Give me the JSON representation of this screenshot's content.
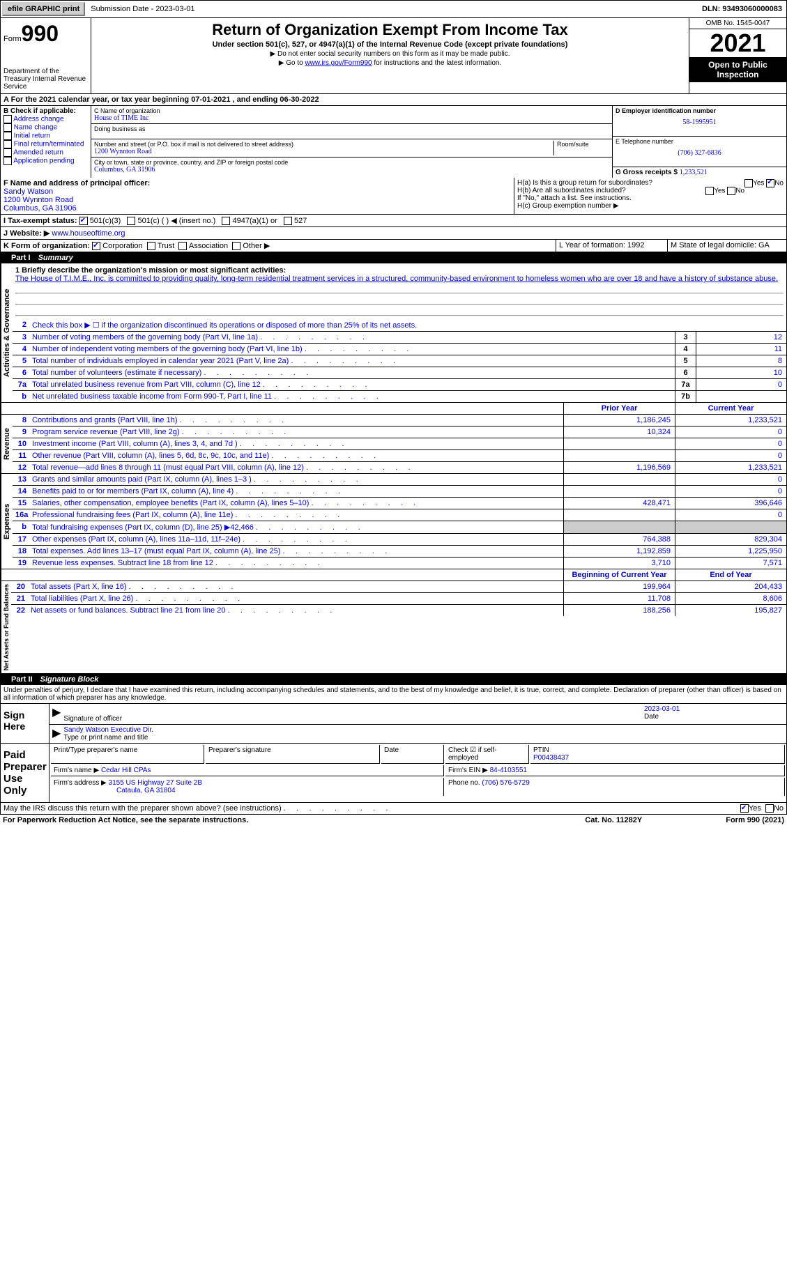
{
  "top": {
    "efile_btn": "efile GRAPHIC print",
    "submission": "Submission Date - 2023-03-01",
    "dln": "DLN: 93493060000083"
  },
  "header": {
    "form_label": "Form",
    "form_num": "990",
    "dept": "Department of the Treasury Internal Revenue Service",
    "title": "Return of Organization Exempt From Income Tax",
    "subtitle": "Under section 501(c), 527, or 4947(a)(1) of the Internal Revenue Code (except private foundations)",
    "note1": "▶ Do not enter social security numbers on this form as it may be made public.",
    "note2_pre": "▶ Go to ",
    "note2_link": "www.irs.gov/Form990",
    "note2_post": " for instructions and the latest information.",
    "omb": "OMB No. 1545-0047",
    "year": "2021",
    "open": "Open to Public Inspection"
  },
  "row_a": "A For the 2021 calendar year, or tax year beginning 07-01-2021    , and ending 06-30-2022",
  "section_b": {
    "hdr": "B Check if applicable:",
    "opts": [
      "Address change",
      "Name change",
      "Initial return",
      "Final return/terminated",
      "Amended return",
      "Application pending"
    ]
  },
  "section_c": {
    "name_lbl": "C Name of organization",
    "name": "House of TIME Inc",
    "dba_lbl": "Doing business as",
    "addr_lbl": "Number and street (or P.O. box if mail is not delivered to street address)",
    "room_lbl": "Room/suite",
    "addr": "1200 Wynnton Road",
    "city_lbl": "City or town, state or province, country, and ZIP or foreign postal code",
    "city": "Columbus, GA  31906"
  },
  "section_d": {
    "ein_lbl": "D Employer identification number",
    "ein": "58-1995951",
    "phone_lbl": "E Telephone number",
    "phone": "(706) 327-6836",
    "gross_lbl": "G Gross receipts $",
    "gross": "1,233,521"
  },
  "section_f": {
    "lbl": "F Name and address of principal officer:",
    "name": "Sandy Watson",
    "addr1": "1200 Wynnton Road",
    "addr2": "Columbus, GA  31906"
  },
  "section_h": {
    "ha": "H(a)  Is this a group return for subordinates?",
    "hb": "H(b)  Are all subordinates included?",
    "hb_note": "If \"No,\" attach a list. See instructions.",
    "hc": "H(c)  Group exemption number ▶"
  },
  "row_i": "I   Tax-exempt status:",
  "i_opts": [
    "501(c)(3)",
    "501(c) (  ) ◀ (insert no.)",
    "4947(a)(1) or",
    "527"
  ],
  "row_j_lbl": "J  Website: ▶",
  "row_j_val": "www.houseoftime.org",
  "row_k": "K Form of organization:",
  "k_opts": [
    "Corporation",
    "Trust",
    "Association",
    "Other ▶"
  ],
  "row_l": "L Year of formation: 1992",
  "row_m": "M State of legal domicile: GA",
  "part1_hdr": "Part I      Summary",
  "mission_lbl": "1  Briefly describe the organization's mission or most significant activities:",
  "mission": "The House of T.I.M.E., Inc. is committed to providing quality, long-term residential treatment services in a structured, community-based environment to homeless women who are over 18 and have a history of substance abuse.",
  "line2": "Check this box ▶ ☐  if the organization discontinued its operations or disposed of more than 25% of its net assets.",
  "summary": {
    "governance_label": "Activities & Governance",
    "lines_top": [
      {
        "n": "3",
        "t": "Number of voting members of the governing body (Part VI, line 1a)",
        "box": "3",
        "v": "12"
      },
      {
        "n": "4",
        "t": "Number of independent voting members of the governing body (Part VI, line 1b)",
        "box": "4",
        "v": "11"
      },
      {
        "n": "5",
        "t": "Total number of individuals employed in calendar year 2021 (Part V, line 2a)",
        "box": "5",
        "v": "8"
      },
      {
        "n": "6",
        "t": "Total number of volunteers (estimate if necessary)",
        "box": "6",
        "v": "10"
      },
      {
        "n": "7a",
        "t": "Total unrelated business revenue from Part VIII, column (C), line 12",
        "box": "7a",
        "v": "0"
      },
      {
        "n": "b",
        "t": "Net unrelated business taxable income from Form 990-T, Part I, line 11",
        "box": "7b",
        "v": ""
      }
    ],
    "col_hdrs": {
      "prior": "Prior Year",
      "current": "Current Year"
    },
    "revenue_label": "Revenue",
    "revenue": [
      {
        "n": "8",
        "t": "Contributions and grants (Part VIII, line 1h)",
        "p": "1,186,245",
        "c": "1,233,521"
      },
      {
        "n": "9",
        "t": "Program service revenue (Part VIII, line 2g)",
        "p": "10,324",
        "c": "0"
      },
      {
        "n": "10",
        "t": "Investment income (Part VIII, column (A), lines 3, 4, and 7d )",
        "p": "",
        "c": "0"
      },
      {
        "n": "11",
        "t": "Other revenue (Part VIII, column (A), lines 5, 6d, 8c, 9c, 10c, and 11e)",
        "p": "",
        "c": "0"
      },
      {
        "n": "12",
        "t": "Total revenue—add lines 8 through 11 (must equal Part VIII, column (A), line 12)",
        "p": "1,196,569",
        "c": "1,233,521"
      }
    ],
    "expenses_label": "Expenses",
    "expenses": [
      {
        "n": "13",
        "t": "Grants and similar amounts paid (Part IX, column (A), lines 1–3 )",
        "p": "",
        "c": "0"
      },
      {
        "n": "14",
        "t": "Benefits paid to or for members (Part IX, column (A), line 4)",
        "p": "",
        "c": "0"
      },
      {
        "n": "15",
        "t": "Salaries, other compensation, employee benefits (Part IX, column (A), lines 5–10)",
        "p": "428,471",
        "c": "396,646"
      },
      {
        "n": "16a",
        "t": "Professional fundraising fees (Part IX, column (A), line 11e)",
        "p": "",
        "c": "0"
      },
      {
        "n": "b",
        "t": "Total fundraising expenses (Part IX, column (D), line 25) ▶42,466",
        "p": "grey",
        "c": "grey"
      },
      {
        "n": "17",
        "t": "Other expenses (Part IX, column (A), lines 11a–11d, 11f–24e)",
        "p": "764,388",
        "c": "829,304"
      },
      {
        "n": "18",
        "t": "Total expenses. Add lines 13–17 (must equal Part IX, column (A), line 25)",
        "p": "1,192,859",
        "c": "1,225,950"
      },
      {
        "n": "19",
        "t": "Revenue less expenses. Subtract line 18 from line 12",
        "p": "3,710",
        "c": "7,571"
      }
    ],
    "netassets_label": "Net Assets or Fund Balances",
    "na_hdrs": {
      "begin": "Beginning of Current Year",
      "end": "End of Year"
    },
    "netassets": [
      {
        "n": "20",
        "t": "Total assets (Part X, line 16)",
        "p": "199,964",
        "c": "204,433"
      },
      {
        "n": "21",
        "t": "Total liabilities (Part X, line 26)",
        "p": "11,708",
        "c": "8,606"
      },
      {
        "n": "22",
        "t": "Net assets or fund balances. Subtract line 21 from line 20",
        "p": "188,256",
        "c": "195,827"
      }
    ]
  },
  "part2_hdr": "Part II     Signature Block",
  "penalties": "Under penalties of perjury, I declare that I have examined this return, including accompanying schedules and statements, and to the best of my knowledge and belief, it is true, correct, and complete. Declaration of preparer (other than officer) is based on all information of which preparer has any knowledge.",
  "sign": {
    "label": "Sign Here",
    "sig_lbl": "Signature of officer",
    "date": "2023-03-01",
    "date_lbl": "Date",
    "name": "Sandy Watson  Executive Dir.",
    "name_lbl": "Type or print name and title"
  },
  "preparer": {
    "label": "Paid Preparer Use Only",
    "print_lbl": "Print/Type preparer's name",
    "sig_lbl": "Preparer's signature",
    "date_lbl": "Date",
    "check_lbl": "Check ☑ if self-employed",
    "ptin_lbl": "PTIN",
    "ptin": "P00438437",
    "firm_lbl": "Firm's name    ▶",
    "firm": "Cedar Hill CPAs",
    "ein_lbl": "Firm's EIN ▶",
    "ein": "84-4103551",
    "addr_lbl": "Firm's address ▶",
    "addr": "3155 US Highway 27 Suite 2B",
    "addr2": "Cataula, GA  31804",
    "phone_lbl": "Phone no.",
    "phone": "(706) 576-5729"
  },
  "discuss": "May the IRS discuss this return with the preparer shown above? (see instructions)",
  "footer": {
    "left": "For Paperwork Reduction Act Notice, see the separate instructions.",
    "mid": "Cat. No. 11282Y",
    "right": "Form 990 (2021)"
  }
}
